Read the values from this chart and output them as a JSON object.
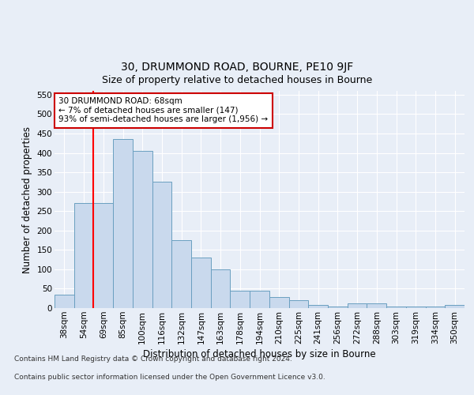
{
  "title1": "30, DRUMMOND ROAD, BOURNE, PE10 9JF",
  "title2": "Size of property relative to detached houses in Bourne",
  "xlabel": "Distribution of detached houses by size in Bourne",
  "ylabel": "Number of detached properties",
  "categories": [
    "38sqm",
    "54sqm",
    "69sqm",
    "85sqm",
    "100sqm",
    "116sqm",
    "132sqm",
    "147sqm",
    "163sqm",
    "178sqm",
    "194sqm",
    "210sqm",
    "225sqm",
    "241sqm",
    "256sqm",
    "272sqm",
    "288sqm",
    "303sqm",
    "319sqm",
    "334sqm",
    "350sqm"
  ],
  "values": [
    35,
    270,
    270,
    435,
    405,
    325,
    175,
    130,
    100,
    45,
    45,
    28,
    20,
    8,
    5,
    12,
    12,
    5,
    5,
    5,
    8
  ],
  "bar_color": "#c9d9ed",
  "bar_edge_color": "#6a9fc0",
  "red_line_x": 1.5,
  "ylim": [
    0,
    560
  ],
  "yticks": [
    0,
    50,
    100,
    150,
    200,
    250,
    300,
    350,
    400,
    450,
    500,
    550
  ],
  "annotation_title": "30 DRUMMOND ROAD: 68sqm",
  "annotation_line1": "← 7% of detached houses are smaller (147)",
  "annotation_line2": "93% of semi-detached houses are larger (1,956) →",
  "annotation_box_color": "#ffffff",
  "annotation_box_edge": "#cc0000",
  "footnote1": "Contains HM Land Registry data © Crown copyright and database right 2024.",
  "footnote2": "Contains public sector information licensed under the Open Government Licence v3.0.",
  "bg_color": "#e8eef7",
  "plot_bg_color": "#e8eef7",
  "grid_color": "#ffffff",
  "title1_fontsize": 10,
  "title2_fontsize": 9,
  "tick_fontsize": 7.5,
  "label_fontsize": 8.5
}
